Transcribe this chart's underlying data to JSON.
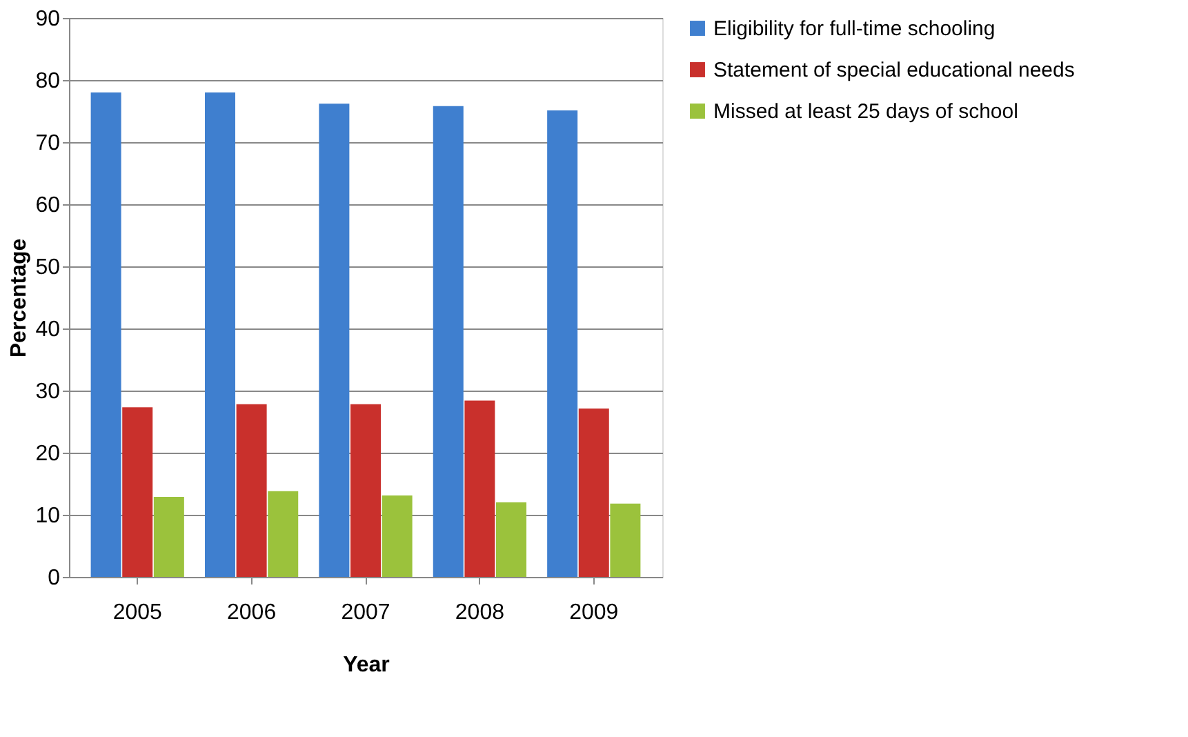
{
  "chart_data": {
    "type": "bar",
    "xlabel": "Year",
    "ylabel": "Percentage",
    "categories": [
      "2005",
      "2006",
      "2007",
      "2008",
      "2009"
    ],
    "series": [
      {
        "name": "Eligibility for full-time schooling",
        "color": "#3f7fcf",
        "values": [
          78,
          78,
          76.2,
          75.8,
          75.1
        ]
      },
      {
        "name": "Statement of special educational needs",
        "color": "#c9302c",
        "values": [
          27.3,
          27.8,
          27.8,
          28.4,
          27.1
        ]
      },
      {
        "name": "Missed at least 25 days of school",
        "color": "#9bc23c",
        "values": [
          12.9,
          13.8,
          13.1,
          12,
          11.8
        ]
      }
    ],
    "ylim": [
      0,
      90
    ],
    "yticks": [
      0,
      10,
      20,
      30,
      40,
      50,
      60,
      70,
      80,
      90
    ],
    "grid": "y",
    "legend": "right"
  }
}
